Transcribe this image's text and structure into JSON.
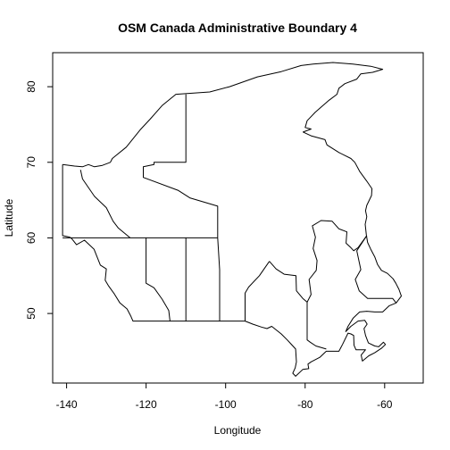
{
  "chart_data": {
    "type": "map",
    "title": "OSM Canada Administrative Boundary 4",
    "xlabel": "Longitude",
    "ylabel": "Latitude",
    "xlim": [
      -143.5,
      -50.3
    ],
    "ylim": [
      40.8,
      84.5
    ],
    "xticks": [
      -140,
      -120,
      -100,
      -80,
      -60
    ],
    "yticks": [
      50,
      60,
      70,
      80
    ],
    "xtick_labels": [
      "-140",
      "-120",
      "-100",
      "-80",
      "-60"
    ],
    "ytick_labels": [
      "50",
      "60",
      "70",
      "80"
    ],
    "grid": false,
    "line_color": "#000000",
    "features": [
      {
        "name": "outer-boundary",
        "coords": [
          [
            -141,
            69.7
          ],
          [
            -138,
            69.5
          ],
          [
            -136,
            69.4
          ],
          [
            -134.5,
            69.7
          ],
          [
            -133,
            69.4
          ],
          [
            -131,
            69.6
          ],
          [
            -129,
            70
          ],
          [
            -128.5,
            70.5
          ],
          [
            -125,
            72
          ],
          [
            -121.5,
            74.3
          ],
          [
            -119,
            75.7
          ],
          [
            -116,
            77.5
          ],
          [
            -112.5,
            79
          ],
          [
            -104,
            79.3
          ],
          [
            -99,
            80
          ],
          [
            -92,
            81.3
          ],
          [
            -86,
            82
          ],
          [
            -81,
            82.8
          ],
          [
            -78,
            83
          ],
          [
            -73,
            83.2
          ],
          [
            -68,
            83
          ],
          [
            -63.5,
            82.7
          ],
          [
            -60.5,
            82.3
          ],
          [
            -63,
            81.9
          ],
          [
            -66,
            81.7
          ],
          [
            -67,
            81
          ],
          [
            -70,
            80.4
          ],
          [
            -71.5,
            79.8
          ],
          [
            -72,
            79
          ],
          [
            -74,
            78.2
          ],
          [
            -76,
            77.3
          ],
          [
            -77.5,
            76.6
          ],
          [
            -79.5,
            75.5
          ],
          [
            -80,
            74.6
          ],
          [
            -78.5,
            74.4
          ],
          [
            -80.5,
            74
          ],
          [
            -78.5,
            73.5
          ],
          [
            -75,
            73
          ],
          [
            -74.5,
            72.3
          ],
          [
            -71.5,
            71.3
          ],
          [
            -68.5,
            70.5
          ],
          [
            -67.5,
            70
          ],
          [
            -66.3,
            68.8
          ],
          [
            -64.5,
            67.5
          ],
          [
            -63.2,
            66.5
          ],
          [
            -63.3,
            65.6
          ],
          [
            -64.5,
            64.3
          ],
          [
            -64.8,
            63.6
          ],
          [
            -64.5,
            62.8
          ],
          [
            -64.9,
            61.8
          ],
          [
            -64.6,
            60.4
          ],
          [
            -64.3,
            59.4
          ],
          [
            -63.5,
            58.5
          ],
          [
            -62.5,
            57.5
          ],
          [
            -61.8,
            56.5
          ],
          [
            -60.8,
            55.7
          ],
          [
            -59.3,
            55.3
          ],
          [
            -57.9,
            54.6
          ],
          [
            -57.2,
            54
          ],
          [
            -56.4,
            53.2
          ],
          [
            -55.8,
            52.3
          ],
          [
            -57.1,
            51.4
          ],
          [
            -58.9,
            51
          ],
          [
            -60.5,
            50.2
          ],
          [
            -62.5,
            50.2
          ],
          [
            -64.5,
            50.3
          ],
          [
            -66.3,
            50.2
          ],
          [
            -67.9,
            49.4
          ],
          [
            -69.2,
            48.3
          ],
          [
            -69.8,
            47.6
          ],
          [
            -68.5,
            48.3
          ],
          [
            -66.7,
            49
          ],
          [
            -65,
            49.1
          ],
          [
            -64.4,
            48.6
          ],
          [
            -65.2,
            48
          ],
          [
            -64.8,
            47.1
          ],
          [
            -64.1,
            46.1
          ],
          [
            -62.5,
            45.7
          ],
          [
            -61.5,
            45.6
          ],
          [
            -60.3,
            46.2
          ],
          [
            -59.8,
            45.9
          ],
          [
            -60.8,
            45.4
          ],
          [
            -62.5,
            44.8
          ],
          [
            -64,
            44.4
          ],
          [
            -65.6,
            43.7
          ],
          [
            -65.9,
            44.5
          ],
          [
            -64.8,
            45.2
          ],
          [
            -67.2,
            45.2
          ],
          [
            -67.7,
            45.8
          ],
          [
            -67.8,
            47.1
          ],
          [
            -68.5,
            47.3
          ],
          [
            -69.2,
            47.4
          ],
          [
            -70.6,
            45.9
          ],
          [
            -71.5,
            45
          ],
          [
            -74.7,
            45
          ],
          [
            -76.3,
            44.2
          ],
          [
            -78.5,
            43.6
          ],
          [
            -79.3,
            43.3
          ],
          [
            -79.1,
            42.7
          ],
          [
            -80.6,
            42.6
          ],
          [
            -82.4,
            41.7
          ],
          [
            -83.1,
            42.1
          ],
          [
            -82.5,
            42.8
          ],
          [
            -82.2,
            43.6
          ],
          [
            -82.4,
            45.3
          ],
          [
            -83.6,
            46
          ],
          [
            -84.5,
            46.5
          ],
          [
            -86,
            47.3
          ],
          [
            -88.4,
            48.3
          ],
          [
            -89.6,
            48
          ],
          [
            -91,
            48.2
          ],
          [
            -93.2,
            48.6
          ],
          [
            -95.1,
            49
          ],
          [
            -123.3,
            49
          ],
          [
            -123.9,
            49.7
          ],
          [
            -124.8,
            50.6
          ],
          [
            -126.6,
            51.4
          ],
          [
            -128,
            52.6
          ],
          [
            -129.5,
            53.7
          ],
          [
            -130.3,
            54.4
          ],
          [
            -130,
            55.9
          ],
          [
            -131.5,
            56.4
          ],
          [
            -133.1,
            58.5
          ],
          [
            -135.5,
            59.7
          ],
          [
            -137.5,
            59.1
          ],
          [
            -138.7,
            59.9
          ],
          [
            -139.2,
            60.1
          ],
          [
            -141,
            60.3
          ],
          [
            -141,
            69.7
          ]
        ]
      },
      {
        "name": "bc-north-boundary",
        "coords": [
          [
            -141,
            60
          ],
          [
            -102,
            60
          ]
        ]
      },
      {
        "name": "bc-alberta-boundary",
        "coords": [
          [
            -120,
            60
          ],
          [
            -120,
            54
          ],
          [
            -118,
            53.4
          ],
          [
            -116,
            51.9
          ],
          [
            -114.3,
            50.4
          ],
          [
            -114,
            49
          ]
        ]
      },
      {
        "name": "alberta-saskatchewan-boundary",
        "coords": [
          [
            -110,
            60
          ],
          [
            -110,
            49
          ]
        ]
      },
      {
        "name": "saskatchewan-manitoba-boundary",
        "coords": [
          [
            -102,
            60
          ],
          [
            -101.5,
            55.8
          ],
          [
            -101.5,
            49
          ]
        ]
      },
      {
        "name": "manitoba-ontario-boundary",
        "coords": [
          [
            -95.1,
            49
          ],
          [
            -95.1,
            52.7
          ],
          [
            -94.2,
            53.5
          ],
          [
            -91.5,
            55
          ],
          [
            -89,
            56.9
          ]
        ]
      },
      {
        "name": "ontario-quebec-boundary",
        "coords": [
          [
            -79.5,
            51.5
          ],
          [
            -79.5,
            46.5
          ],
          [
            -78.7,
            46.2
          ],
          [
            -77.3,
            45.7
          ],
          [
            -74.7,
            45.3
          ]
        ]
      },
      {
        "name": "quebec-labrador-boundary",
        "coords": [
          [
            -64.5,
            60.3
          ],
          [
            -67,
            58.3
          ],
          [
            -66,
            55.8
          ],
          [
            -67.4,
            54.5
          ],
          [
            -66.4,
            53
          ],
          [
            -64.3,
            52
          ],
          [
            -58,
            52
          ],
          [
            -57.1,
            51.4
          ]
        ]
      },
      {
        "name": "yukon-nwt-boundary",
        "coords": [
          [
            -136.5,
            69
          ],
          [
            -136,
            67.8
          ],
          [
            -133,
            65.5
          ],
          [
            -130,
            64
          ],
          [
            -128.3,
            62.2
          ],
          [
            -127,
            61.3
          ],
          [
            -124,
            60
          ]
        ]
      },
      {
        "name": "nwt-nunavut-boundary",
        "coords": [
          [
            -102,
            60
          ],
          [
            -102,
            64.2
          ],
          [
            -109,
            65.3
          ],
          [
            -112,
            66.3
          ],
          [
            -120.7,
            68
          ],
          [
            -120.7,
            69.4
          ],
          [
            -118,
            69.7
          ],
          [
            -118,
            70
          ],
          [
            -110,
            70
          ],
          [
            -110,
            79
          ]
        ]
      },
      {
        "name": "hudson-bay-coast",
        "coords": [
          [
            -89,
            56.9
          ],
          [
            -87.3,
            55.9
          ],
          [
            -85.3,
            55.2
          ],
          [
            -82.3,
            55
          ],
          [
            -82.2,
            53
          ],
          [
            -80.6,
            52
          ],
          [
            -79.5,
            51.5
          ],
          [
            -78.5,
            52.5
          ],
          [
            -79,
            54.5
          ],
          [
            -77.2,
            55.7
          ],
          [
            -77,
            57
          ],
          [
            -78,
            58.6
          ],
          [
            -77.4,
            60.1
          ],
          [
            -78.2,
            61.6
          ],
          [
            -76,
            62.3
          ],
          [
            -73.2,
            62.2
          ],
          [
            -71.5,
            61.2
          ],
          [
            -69.5,
            60.8
          ],
          [
            -69.7,
            59.3
          ],
          [
            -68.5,
            58.7
          ],
          [
            -67.8,
            58.3
          ],
          [
            -66.7,
            58.7
          ],
          [
            -64.5,
            60.3
          ]
        ]
      }
    ]
  }
}
